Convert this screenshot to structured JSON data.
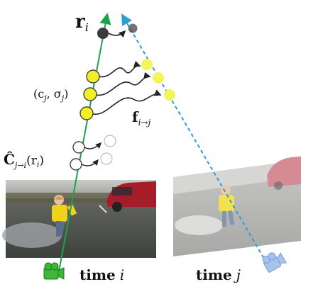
{
  "labels": {
    "ray_symbol": "r",
    "ray_sub": "i",
    "params_text": "(c",
    "params_sub": "j",
    "params_sigma": ", σ",
    "params_sigma_sub": "j",
    "params_close": ")",
    "flow_symbol": "f",
    "flow_sub": "i→j",
    "color_hat": "Ĉ",
    "color_sub": "j→i",
    "color_arg_open": "(r",
    "color_arg_sub": "i",
    "color_arg_close": ")",
    "time_i_word": "time",
    "time_i_var": "i",
    "time_j_word": "time",
    "time_j_var": "j"
  },
  "colors": {
    "ray_i": "#1aa34a",
    "ray_j": "#2a9fd6",
    "sample_fill": "#f2ef22",
    "sample_stroke": "#444444",
    "warped_fill": "#f3f55a",
    "point_dark": "#3a3a3a",
    "camera_i": "#3fb53a",
    "camera_j": "#a9c2ec"
  },
  "icons": {
    "camera_i": "camera-icon",
    "camera_j": "camera-icon"
  }
}
